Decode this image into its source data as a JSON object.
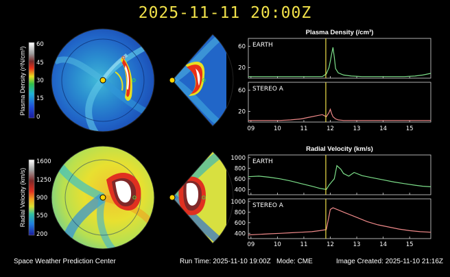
{
  "header": {
    "title": "2025-11-11 20:00Z"
  },
  "footer": {
    "left": "Space Weather Prediction Center",
    "run_time_label": "Run Time: 2025-11-10 19:00Z",
    "mode_label": "Mode: CME",
    "image_created": "Image Created: 2025-11-10 21:16Z"
  },
  "colorbars": [
    {
      "label": "Plasma Density (r²N/cm³)",
      "ticks": [
        "60",
        "45",
        "30",
        "15",
        "0"
      ]
    },
    {
      "label": "Radial Velocity (km/s)",
      "ticks": [
        "1600",
        "1250",
        "900",
        "550",
        "200"
      ]
    }
  ],
  "chart_data": [
    {
      "type": "line",
      "title": "Plasma Density (/cm³)",
      "x_tick_labels": [
        "09",
        "10",
        "11",
        "12",
        "13",
        "14",
        "15"
      ],
      "x_range": [
        8.9,
        15.8
      ],
      "current_time": 11.83,
      "panels": [
        {
          "name": "EARTH",
          "y_ticks": [
            "20",
            "60"
          ],
          "ylim": [
            0,
            75
          ],
          "line_color": "#7de08a",
          "x": [
            8.9,
            9.3,
            9.7,
            10.1,
            10.5,
            10.9,
            11.3,
            11.7,
            11.85,
            11.95,
            12.0,
            12.05,
            12.1,
            12.15,
            12.2,
            12.3,
            12.5,
            12.8,
            13.2,
            13.6,
            14.0,
            14.4,
            14.8,
            15.2,
            15.5,
            15.8
          ],
          "y": [
            3,
            3,
            3,
            3,
            3,
            3,
            3,
            3,
            8,
            20,
            32,
            45,
            58,
            40,
            18,
            10,
            6,
            4,
            3,
            3,
            3,
            3,
            3,
            4,
            6,
            9
          ]
        },
        {
          "name": "STEREO A",
          "y_ticks": [
            "20",
            "60"
          ],
          "ylim": [
            0,
            75
          ],
          "line_color": "#f08a8a",
          "x": [
            8.9,
            9.3,
            9.7,
            10.1,
            10.5,
            10.9,
            11.2,
            11.5,
            11.7,
            11.85,
            11.95,
            12.0,
            12.05,
            12.1,
            12.15,
            12.2,
            12.3,
            12.5,
            12.8,
            13.2,
            13.6,
            14.0,
            14.4,
            14.8,
            15.2,
            15.5,
            15.8
          ],
          "y": [
            3,
            3,
            3,
            3,
            4,
            6,
            9,
            12,
            14,
            10,
            18,
            24,
            16,
            10,
            8,
            6,
            4,
            3,
            3,
            3,
            3,
            3,
            3,
            3,
            3,
            3,
            3
          ]
        }
      ]
    },
    {
      "type": "line",
      "title": "Radial Velocity (km/s)",
      "x_tick_labels": [
        "09",
        "10",
        "11",
        "12",
        "13",
        "14",
        "15"
      ],
      "x_range": [
        8.9,
        15.8
      ],
      "current_time": 11.83,
      "panels": [
        {
          "name": "EARTH",
          "y_ticks": [
            "1000",
            "800",
            "600",
            "400"
          ],
          "ylim": [
            300,
            1050
          ],
          "line_color": "#7de08a",
          "x": [
            8.9,
            9.3,
            9.7,
            10.1,
            10.5,
            10.9,
            11.3,
            11.6,
            11.85,
            11.95,
            12.05,
            12.15,
            12.25,
            12.4,
            12.5,
            12.7,
            12.9,
            13.2,
            13.6,
            14.0,
            14.4,
            14.8,
            15.2,
            15.5,
            15.8
          ],
          "y": [
            640,
            650,
            630,
            600,
            560,
            510,
            460,
            420,
            400,
            480,
            540,
            600,
            850,
            780,
            700,
            650,
            720,
            660,
            620,
            580,
            540,
            510,
            480,
            460,
            450
          ]
        },
        {
          "name": "STEREO A",
          "y_ticks": [
            "1000",
            "800",
            "600",
            "400"
          ],
          "ylim": [
            300,
            1050
          ],
          "line_color": "#f08a8a",
          "x": [
            8.9,
            9.3,
            9.7,
            10.1,
            10.5,
            10.9,
            11.3,
            11.6,
            11.85,
            12.0,
            12.1,
            12.3,
            12.6,
            13.0,
            13.4,
            13.8,
            14.2,
            14.6,
            15.0,
            15.4,
            15.8
          ],
          "y": [
            370,
            380,
            390,
            400,
            410,
            420,
            430,
            450,
            470,
            850,
            880,
            840,
            780,
            700,
            620,
            560,
            520,
            480,
            450,
            430,
            420
          ]
        }
      ]
    }
  ]
}
